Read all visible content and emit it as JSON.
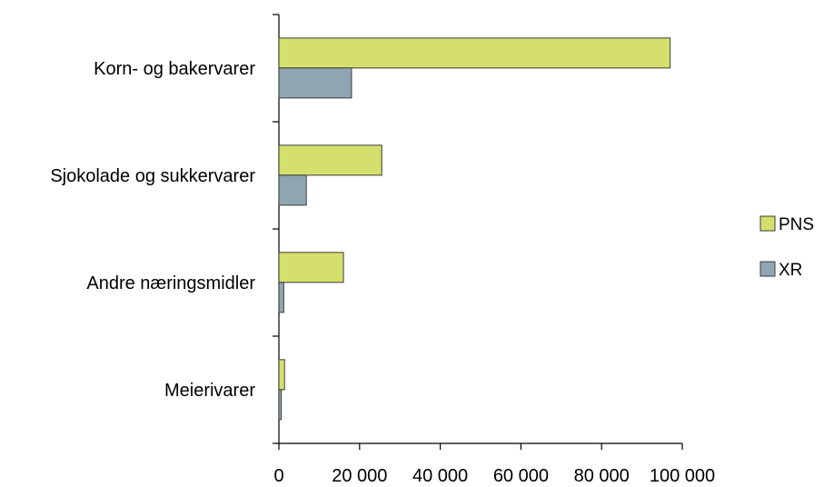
{
  "chart_data": {
    "type": "bar",
    "orientation": "horizontal",
    "categories": [
      "Korn- og bakervarer",
      "Sjokolade og sukkervarer",
      "Andre næringsmidler",
      "Meierivarer"
    ],
    "series": [
      {
        "name": "PNS",
        "values": [
          97000,
          25500,
          16000,
          1400
        ],
        "color": "#d4e06b"
      },
      {
        "name": "XR",
        "values": [
          18000,
          6800,
          1200,
          600
        ],
        "color": "#8fa6b2"
      }
    ],
    "xlim": [
      0,
      100000
    ],
    "xticks": [
      0,
      20000,
      40000,
      60000,
      80000,
      100000
    ],
    "xtick_labels": [
      "0",
      "20 000",
      "40 000",
      "60 000",
      "80 000",
      "100 000"
    ],
    "title": "",
    "xlabel": "",
    "ylabel": "",
    "grid": false,
    "legend_position": "right"
  }
}
